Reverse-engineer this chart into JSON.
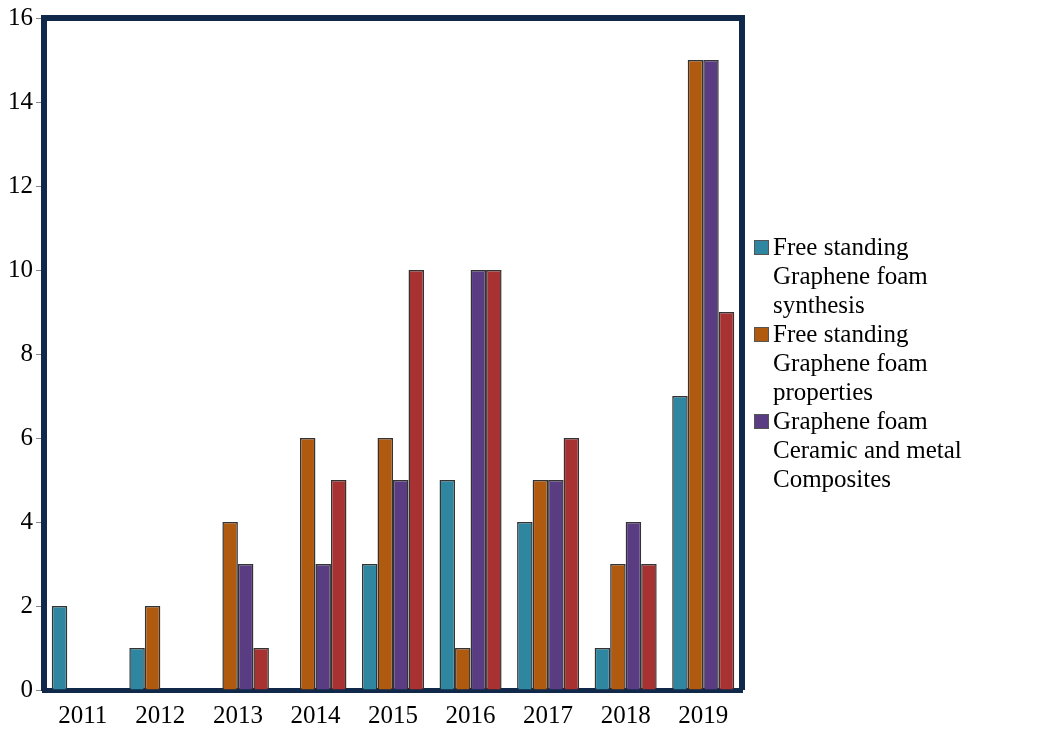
{
  "chart_data": {
    "type": "bar",
    "categories": [
      "2011",
      "2012",
      "2013",
      "2014",
      "2015",
      "2016",
      "2017",
      "2018",
      "2019"
    ],
    "series": [
      {
        "name": "Free standing Graphene foam synthesis",
        "color": "#2e86a0",
        "values": [
          2,
          1,
          0,
          0,
          3,
          5,
          4,
          1,
          7
        ]
      },
      {
        "name": "Free standing Graphene foam properties",
        "color": "#b05a10",
        "values": [
          0,
          2,
          4,
          6,
          6,
          1,
          5,
          3,
          15
        ]
      },
      {
        "name": "Graphene foam Ceramic and metal Composites",
        "color": "#5a3c82",
        "values": [
          0,
          0,
          3,
          3,
          5,
          10,
          5,
          4,
          15
        ]
      },
      {
        "color": "#a83232",
        "values": [
          0,
          0,
          1,
          5,
          10,
          10,
          6,
          3,
          9
        ]
      }
    ],
    "ylim": [
      0,
      16
    ],
    "yticks": [
      0,
      2,
      4,
      6,
      8,
      10,
      12,
      14,
      16
    ],
    "grid": false,
    "legend": "right"
  }
}
